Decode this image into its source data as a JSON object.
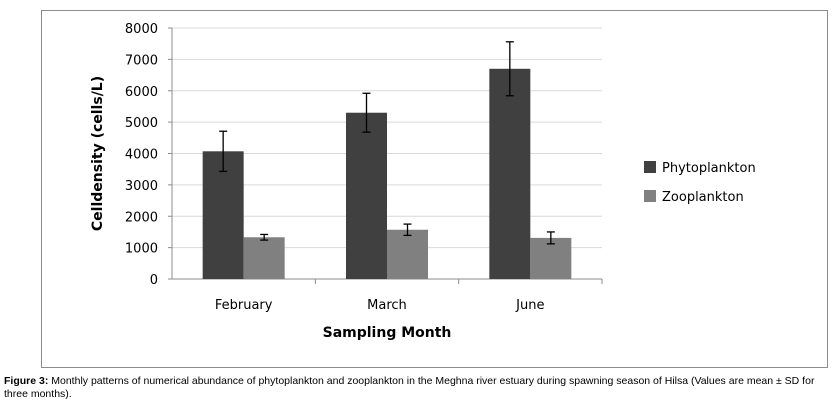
{
  "chart_data": {
    "type": "bar",
    "categories": [
      "February",
      "March",
      "June"
    ],
    "series": [
      {
        "name": "Phytoplankton",
        "color": "#404040",
        "values": [
          4070,
          5300,
          6700
        ],
        "errors": [
          640,
          620,
          860
        ]
      },
      {
        "name": "Zooplankton",
        "color": "#808080",
        "values": [
          1330,
          1570,
          1310
        ],
        "errors": [
          90,
          180,
          190
        ]
      }
    ],
    "ylabel": "Celldensity  (cells/L)",
    "xlabel": "Sampling Month",
    "ylim": [
      0,
      8000
    ],
    "yticks": [
      0,
      1000,
      2000,
      3000,
      4000,
      5000,
      6000,
      7000,
      8000
    ],
    "grid": true,
    "legend_position": "right"
  },
  "caption": {
    "label": "Figure 3:",
    "text": " Monthly patterns of numerical abundance of phytoplankton and zooplankton in the Meghna river estuary during spawning season of Hilsa (Values are mean ± SD for three months)."
  }
}
